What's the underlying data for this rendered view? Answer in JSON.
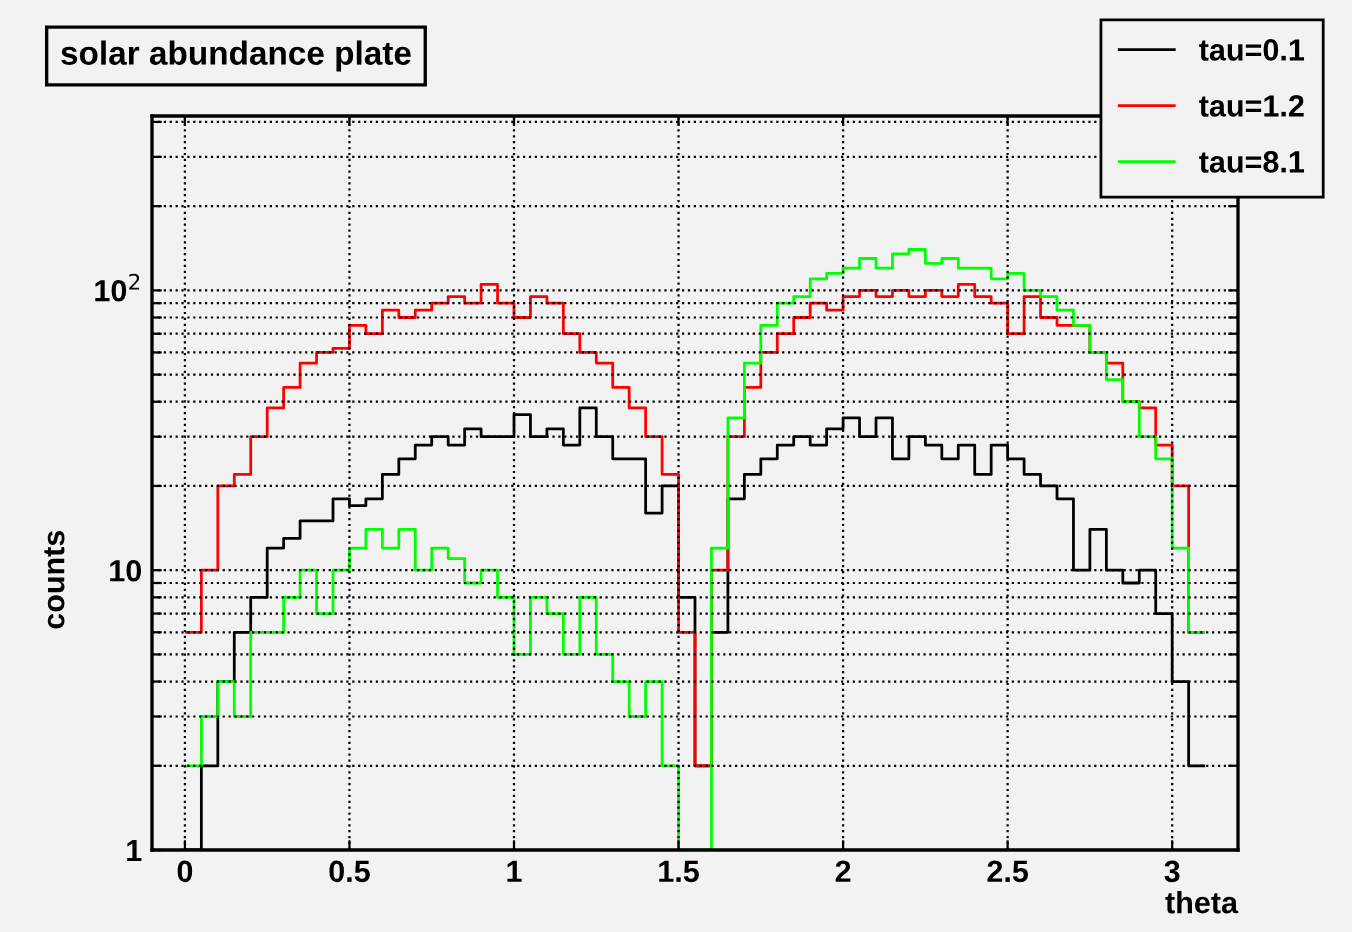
{
  "chart_data": {
    "type": "histogram",
    "title": "solar abundance plate",
    "xlabel": "theta",
    "ylabel": "counts",
    "bins": [
      0.0,
      0.05,
      0.1,
      0.15,
      0.2,
      0.25,
      0.3,
      0.35,
      0.4,
      0.45,
      0.5,
      0.55,
      0.6,
      0.65,
      0.7,
      0.75,
      0.8,
      0.85,
      0.9,
      0.95,
      1.0,
      1.05,
      1.1,
      1.15,
      1.2,
      1.25,
      1.3,
      1.35,
      1.4,
      1.45,
      1.5,
      1.55,
      1.6,
      1.65,
      1.7,
      1.75,
      1.8,
      1.85,
      1.9,
      1.95,
      2.0,
      2.05,
      2.1,
      2.15,
      2.2,
      2.25,
      2.3,
      2.35,
      2.4,
      2.45,
      2.5,
      2.55,
      2.6,
      2.65,
      2.7,
      2.75,
      2.8,
      2.85,
      2.9,
      2.95,
      3.0,
      3.05,
      3.1
    ],
    "series": [
      {
        "name": "tau=0.1",
        "color": "#000000",
        "values": [
          1,
          2,
          4,
          6,
          8,
          12,
          13,
          15,
          15,
          18,
          17,
          18,
          22,
          25,
          28,
          30,
          28,
          32,
          30,
          30,
          36,
          30,
          32,
          28,
          38,
          30,
          25,
          25,
          16,
          20,
          8,
          2,
          6,
          18,
          22,
          25,
          28,
          30,
          28,
          32,
          35,
          30,
          35,
          25,
          30,
          28,
          25,
          28,
          22,
          28,
          25,
          22,
          20,
          18,
          10,
          14,
          10,
          9,
          10,
          7,
          4,
          2
        ]
      },
      {
        "name": "tau=1.2",
        "color": "#ff0000",
        "values": [
          6,
          10,
          20,
          22,
          30,
          38,
          45,
          55,
          60,
          62,
          75,
          70,
          85,
          80,
          85,
          90,
          95,
          90,
          105,
          90,
          80,
          95,
          90,
          70,
          60,
          55,
          45,
          38,
          30,
          22,
          6,
          2,
          10,
          30,
          45,
          60,
          70,
          80,
          90,
          85,
          95,
          100,
          95,
          100,
          95,
          100,
          95,
          105,
          95,
          90,
          70,
          95,
          80,
          75,
          75,
          60,
          55,
          40,
          38,
          28,
          20,
          6
        ]
      },
      {
        "name": "tau=8.1",
        "color": "#00ff00",
        "values": [
          2,
          3,
          4,
          3,
          6,
          6,
          8,
          10,
          7,
          10,
          12,
          14,
          12,
          14,
          10,
          12,
          11,
          9,
          10,
          8,
          5,
          8,
          7,
          5,
          8,
          5,
          4,
          3,
          4,
          2,
          1,
          1,
          12,
          35,
          55,
          75,
          90,
          95,
          110,
          115,
          120,
          130,
          120,
          135,
          140,
          125,
          130,
          120,
          120,
          110,
          115,
          100,
          95,
          85,
          75,
          60,
          48,
          40,
          30,
          25,
          12,
          6
        ]
      }
    ],
    "xlim": [
      -0.1,
      3.2
    ],
    "xticks": [
      0,
      0.5,
      1,
      1.5,
      2,
      2.5,
      3
    ],
    "log": "y",
    "ylim": [
      1,
      420
    ],
    "yticks": [
      1,
      {
        "value": 2,
        "label": null
      },
      {
        "value": 3,
        "label": null
      },
      {
        "value": 4,
        "label": null
      },
      {
        "value": 5,
        "label": null
      },
      {
        "value": 6,
        "label": null
      },
      {
        "value": 7,
        "label": null
      },
      {
        "value": 8,
        "label": null
      },
      {
        "value": 9,
        "label": null
      },
      10,
      {
        "value": 20,
        "label": null
      },
      {
        "value": 30,
        "label": null
      },
      {
        "value": 40,
        "label": null
      },
      {
        "value": 50,
        "label": null
      },
      {
        "value": 60,
        "label": null
      },
      {
        "value": 70,
        "label": null
      },
      {
        "value": 80,
        "label": null
      },
      {
        "value": 90,
        "label": null
      },
      {
        "value": 100,
        "label": "10$^{2}$"
      },
      {
        "value": 200,
        "label": null
      },
      {
        "value": 300,
        "label": null
      },
      {
        "value": 400,
        "label": null
      }
    ],
    "grid": true,
    "legend": "top right"
  }
}
